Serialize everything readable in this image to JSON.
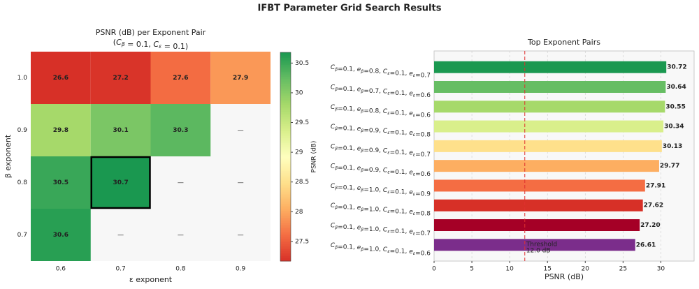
{
  "title": "IFBT Parameter Grid Search Results",
  "chart_data": [
    {
      "type": "heatmap",
      "title": "PSNR (dB) per Exponent Pair",
      "subtitle": "(Cβ = 0.1,  Cε = 0.1)",
      "xlabel": "ε exponent",
      "ylabel": "β exponent",
      "categories": [
        "0.6",
        "0.7",
        "0.8",
        "0.9"
      ],
      "y_categories": [
        "1.0",
        "0.9",
        "0.8",
        "0.7"
      ],
      "values": [
        [
          26.6,
          27.2,
          27.6,
          27.9
        ],
        [
          29.8,
          30.1,
          30.3,
          null
        ],
        [
          30.5,
          30.7,
          null,
          null
        ],
        [
          30.6,
          null,
          null,
          null
        ]
      ],
      "missing_label": "—",
      "colormap": "RdYlGn",
      "clim": [
        27.17,
        30.68
      ],
      "colorbar_label": "PSNR (dB)",
      "colorbar_ticks": [
        27.5,
        28.0,
        28.5,
        29.0,
        29.5,
        30.0,
        30.5
      ],
      "highlight": {
        "row": 2,
        "col": 1
      }
    },
    {
      "type": "barh",
      "title": "Top Exponent Pairs",
      "xlabel": "PSNR (dB)",
      "categories": [
        "Cβ=0.1,  eβ=0.8,  Cε=0.1,  eε=0.7",
        "Cβ=0.1,  eβ=0.7,  Cε=0.1,  eε=0.6",
        "Cβ=0.1,  eβ=0.8,  Cε=0.1,  eε=0.6",
        "Cβ=0.1,  eβ=0.9,  Cε=0.1,  eε=0.8",
        "Cβ=0.1,  eβ=0.9,  Cε=0.1,  eε=0.7",
        "Cβ=0.1,  eβ=0.9,  Cε=0.1,  eε=0.6",
        "Cβ=0.1,  eβ=1.0,  Cε=0.1,  eε=0.9",
        "Cβ=0.1,  eβ=1.0,  Cε=0.1,  eε=0.8",
        "Cβ=0.1,  eβ=1.0,  Cε=0.1,  eε=0.7",
        "Cβ=0.1,  eβ=1.0,  Cε=0.1,  eε=0.6"
      ],
      "values": [
        30.72,
        30.64,
        30.55,
        30.34,
        30.13,
        29.77,
        27.91,
        27.62,
        27.2,
        26.61
      ],
      "value_labels": [
        "30.72",
        "30.64",
        "30.55",
        "30.34",
        "30.13",
        "29.77",
        "27.91",
        "27.62",
        "27.20",
        "26.61"
      ],
      "colors": [
        "#1a9850",
        "#66bd63",
        "#a6d96a",
        "#d9ef8b",
        "#fee08b",
        "#fdae61",
        "#f46d43",
        "#d73027",
        "#a50026",
        "#7b2d8b"
      ],
      "xlim": [
        0,
        34.4
      ],
      "xticks": [
        0,
        5,
        10,
        15,
        20,
        25,
        30
      ],
      "grid": true,
      "reference_line": {
        "value": 12.0,
        "color": "#e03030",
        "label": [
          "Threshold",
          "12.0 dB"
        ]
      }
    }
  ]
}
